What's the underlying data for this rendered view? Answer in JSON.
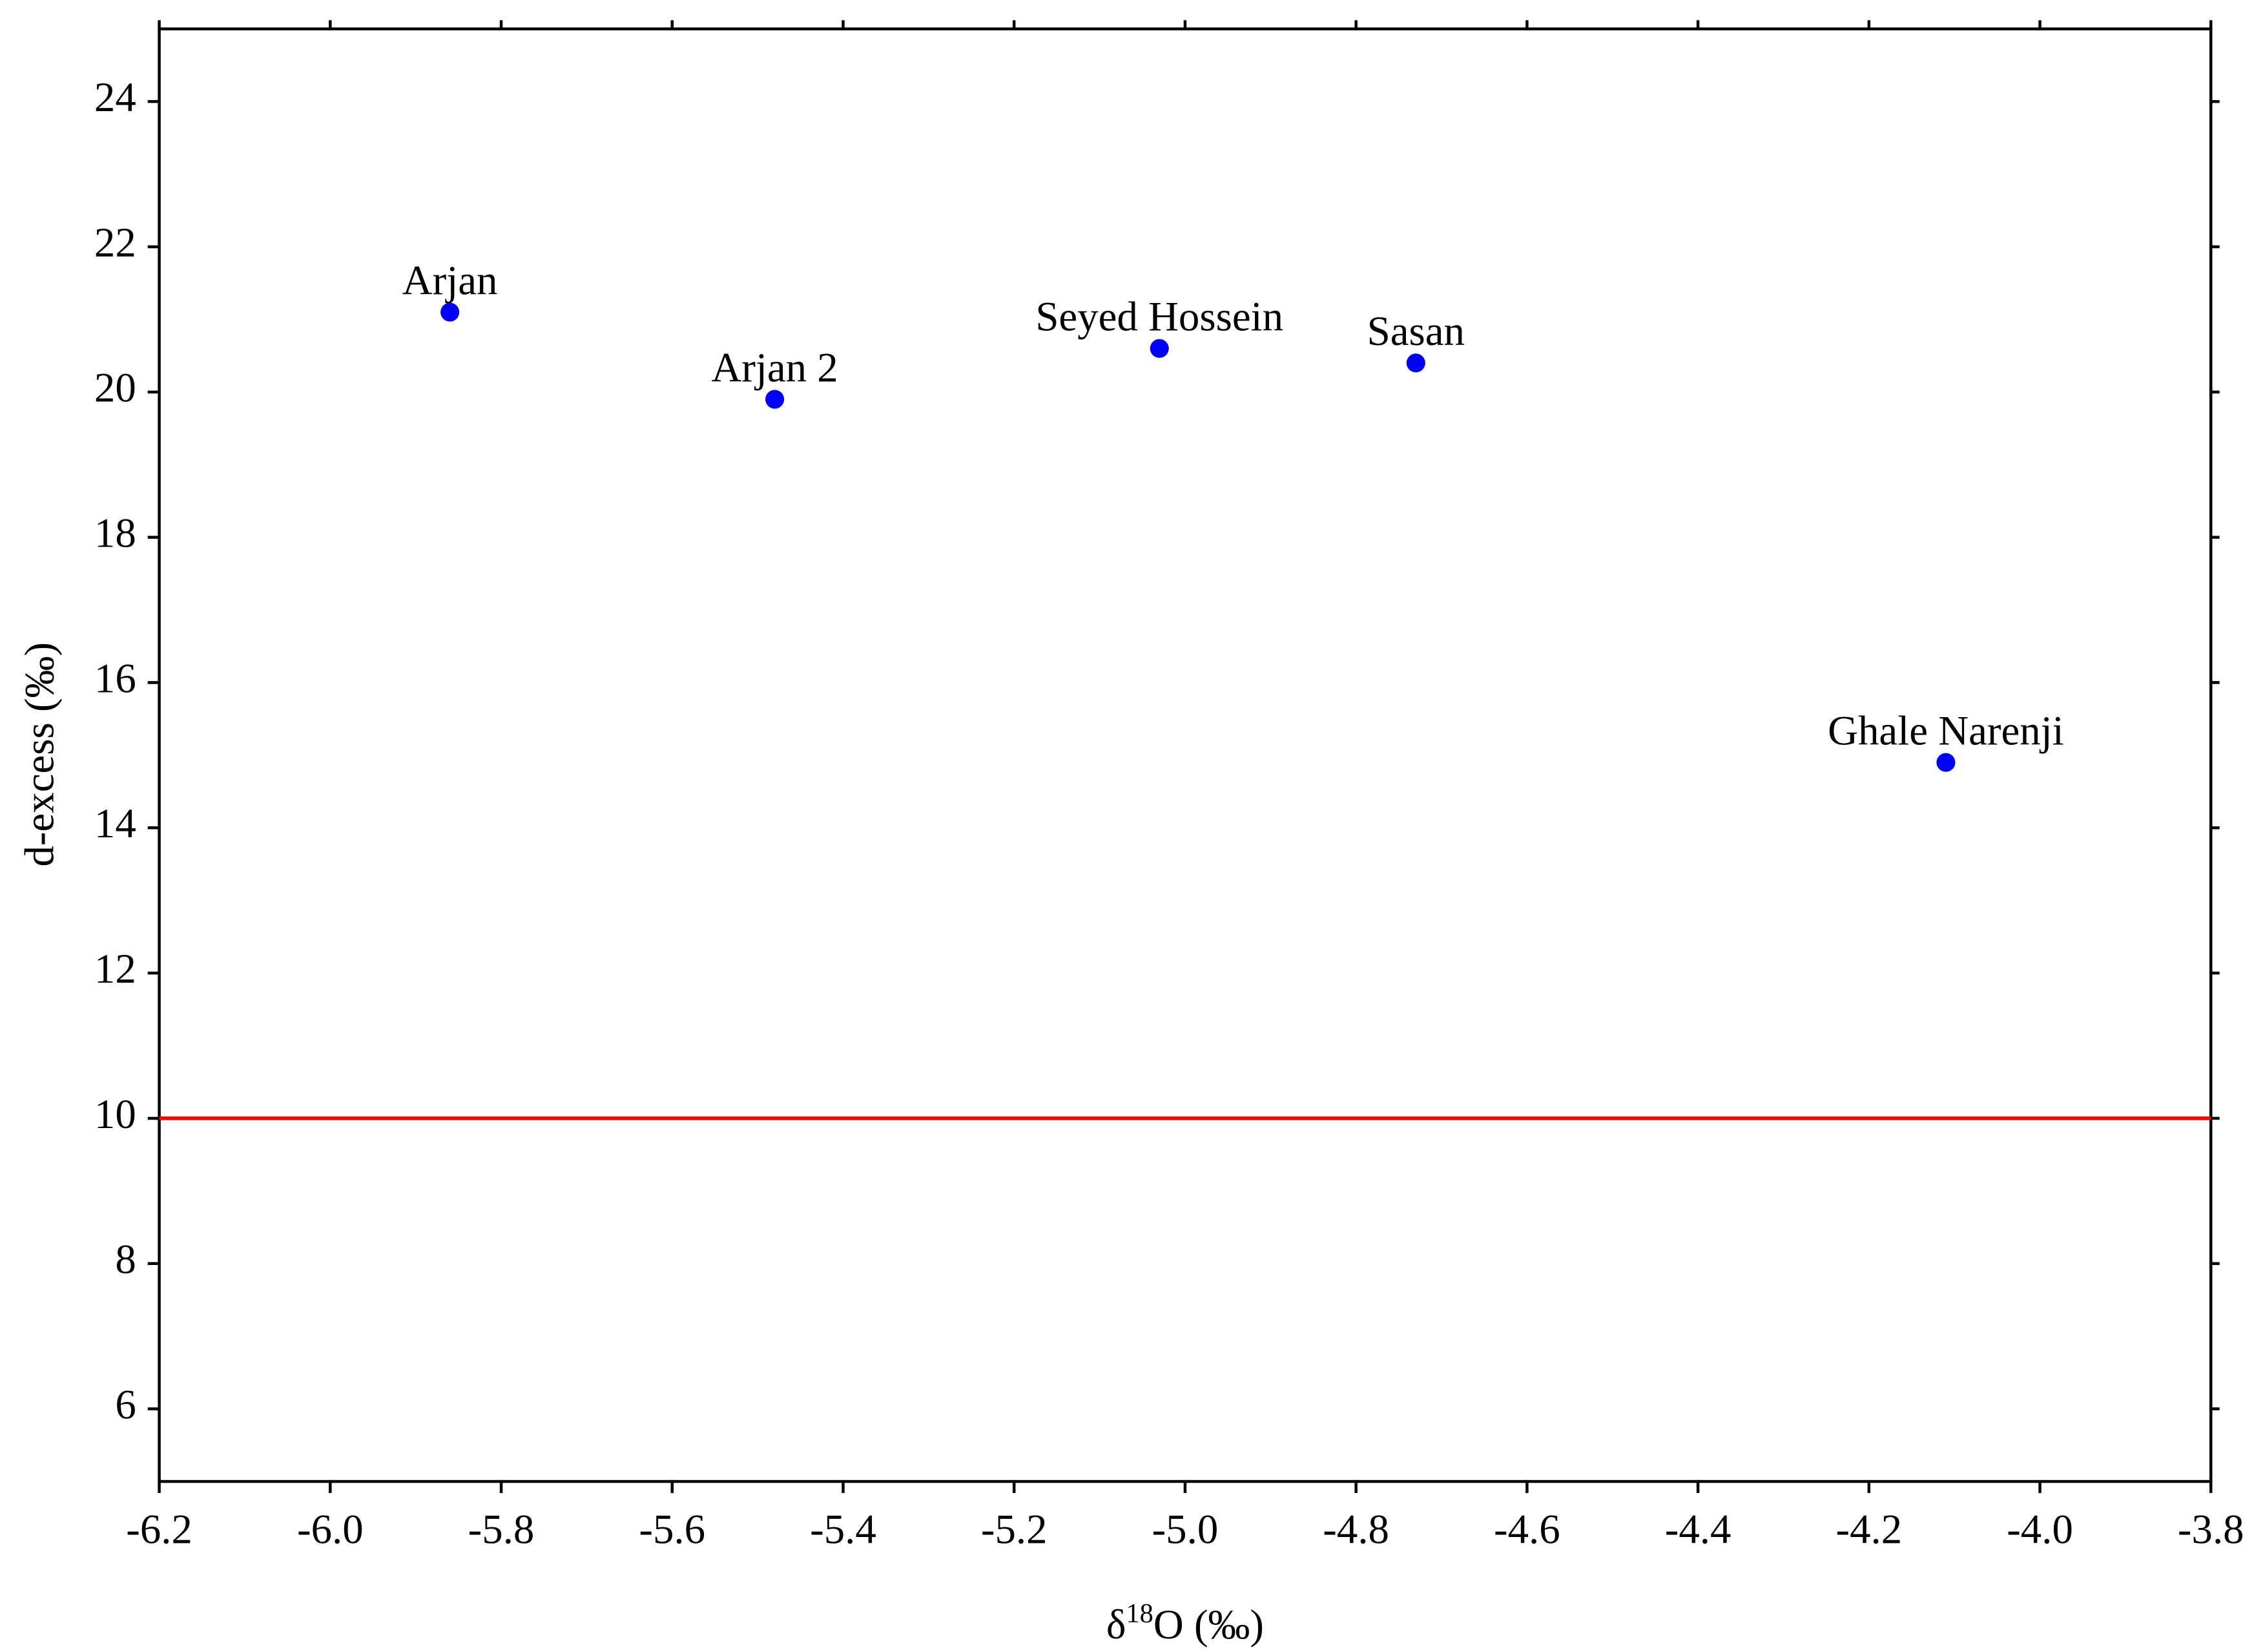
{
  "chart_data": {
    "type": "scatter",
    "x_label_parts": [
      "δ",
      "18",
      "O (‰)"
    ],
    "y_label": "d-excess (‰)",
    "x": [
      -5.86,
      -5.48,
      -5.03,
      -4.73,
      -4.11
    ],
    "values": [
      21.1,
      19.9,
      20.6,
      20.4,
      14.9
    ],
    "point_labels": [
      "Arjan",
      "Arjan 2",
      "Seyed Hossein",
      "Sasan",
      "Ghale Narenji"
    ],
    "color": "#0000ff",
    "reference_line": {
      "value": 10,
      "color": "#ff0000"
    },
    "xlim": [
      -6.2,
      -3.8
    ],
    "xticks": [
      -6.2,
      {
        "value": -6.0,
        "label": "-6.0"
      },
      -5.8,
      -5.6,
      -5.4,
      -5.2,
      {
        "value": -5.0,
        "label": "-5.0"
      },
      -4.8,
      -4.6,
      -4.4,
      -4.2,
      {
        "value": -4.0,
        "label": "-4.0"
      },
      -3.8
    ],
    "ylim": [
      5,
      25
    ],
    "yticks": [
      6,
      8,
      10,
      12,
      14,
      16,
      18,
      20,
      22,
      24
    ]
  }
}
